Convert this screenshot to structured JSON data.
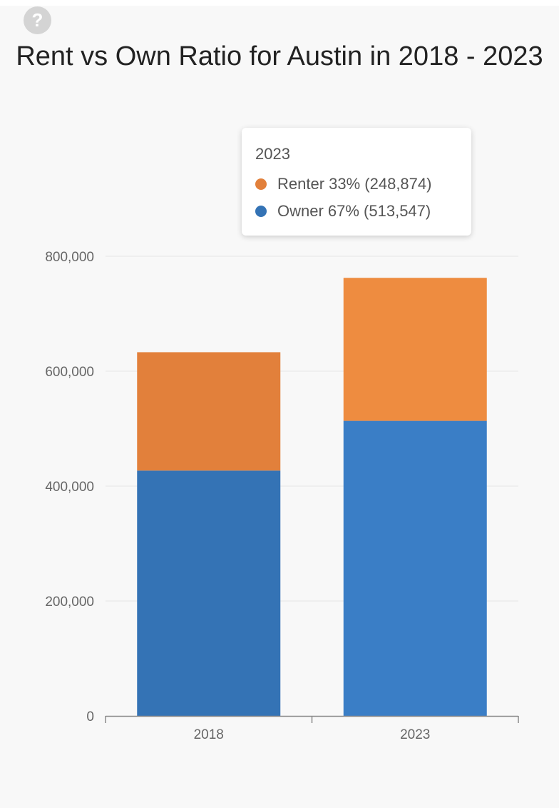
{
  "help": {
    "icon": "question-circle-icon",
    "glyph": "?"
  },
  "chart_data": {
    "type": "bar",
    "stacked": true,
    "title": "Rent vs Own Ratio for Austin in 2018 - 2023",
    "categories": [
      "2018",
      "2023"
    ],
    "series": [
      {
        "name": "Owner",
        "color": "#3a7ec6",
        "values": [
          427000,
          513547
        ]
      },
      {
        "name": "Renter",
        "color": "#ee8c40",
        "values": [
          206000,
          248874
        ]
      }
    ],
    "bar_colors": {
      "2018": {
        "Owner": "#3473b5",
        "Renter": "#e2803b"
      }
    },
    "ylim": [
      0,
      800000
    ],
    "yticks": [
      "0",
      "200,000",
      "400,000",
      "600,000",
      "800,000"
    ],
    "ytick_values": [
      0,
      200000,
      400000,
      600000,
      800000
    ],
    "grid": true,
    "tooltip": {
      "category": "2023",
      "rows": [
        {
          "series": "Renter",
          "text": "Renter 33% (248,874)",
          "color": "#e2803b"
        },
        {
          "series": "Owner",
          "text": "Owner 67% (513,547)",
          "color": "#3473b5"
        }
      ]
    }
  }
}
